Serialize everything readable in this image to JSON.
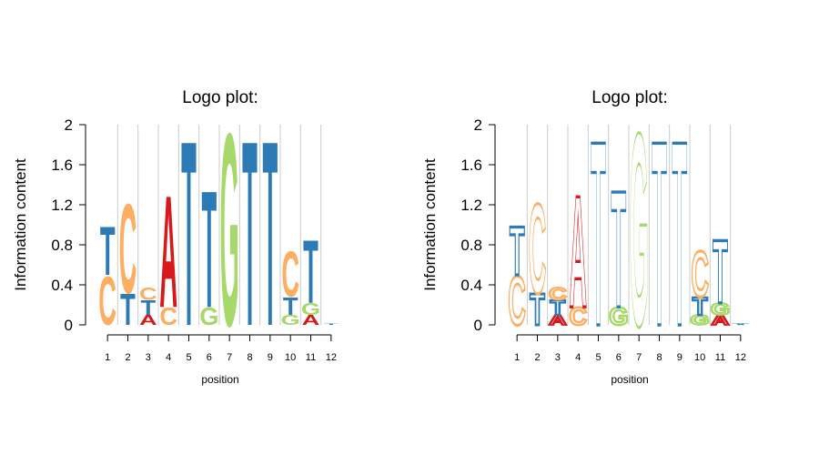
{
  "colors": {
    "A": "#d7191c",
    "C": "#fdae61",
    "G": "#a6d96a",
    "T": "#2c7bb6",
    "gridline": "#cccccc",
    "axis": "#000000"
  },
  "chart_data": [
    {
      "type": "sequence-logo",
      "style": "filled",
      "title": "Logo plot:",
      "xlabel": "position",
      "ylabel": "Information content",
      "ylim": [
        0,
        2
      ],
      "yticks": [
        "0",
        "0.4",
        "0.8",
        "1.2",
        "1.6",
        "2"
      ],
      "ytick_values": [
        0,
        0.4,
        0.8,
        1.2,
        1.6,
        2
      ],
      "xticks": [
        "1",
        "2",
        "3",
        "4",
        "5",
        "6",
        "7",
        "8",
        "9",
        "10",
        "11",
        "12"
      ],
      "grid": "vertical",
      "positions": [
        {
          "x": 1,
          "stack": [
            {
              "letter": "C",
              "height": 0.5
            },
            {
              "letter": "T",
              "height": 0.5
            }
          ]
        },
        {
          "x": 2,
          "stack": [
            {
              "letter": "T",
              "height": 0.32
            },
            {
              "letter": "C",
              "height": 0.92
            }
          ]
        },
        {
          "x": 3,
          "stack": [
            {
              "letter": "A",
              "height": 0.1
            },
            {
              "letter": "T",
              "height": 0.15
            },
            {
              "letter": "C",
              "height": 0.13
            }
          ]
        },
        {
          "x": 4,
          "stack": [
            {
              "letter": "C",
              "height": 0.18
            },
            {
              "letter": "A",
              "height": 1.15
            }
          ]
        },
        {
          "x": 5,
          "stack": [
            {
              "letter": "T",
              "height": 1.9
            }
          ]
        },
        {
          "x": 6,
          "stack": [
            {
              "letter": "G",
              "height": 0.18
            },
            {
              "letter": "T",
              "height": 1.2
            }
          ]
        },
        {
          "x": 7,
          "stack": [
            {
              "letter": "G",
              "height": 1.98
            }
          ]
        },
        {
          "x": 8,
          "stack": [
            {
              "letter": "T",
              "height": 1.9
            }
          ]
        },
        {
          "x": 9,
          "stack": [
            {
              "letter": "T",
              "height": 1.9
            }
          ]
        },
        {
          "x": 10,
          "stack": [
            {
              "letter": "G",
              "height": 0.1
            },
            {
              "letter": "T",
              "height": 0.18
            },
            {
              "letter": "C",
              "height": 0.47
            }
          ]
        },
        {
          "x": 11,
          "stack": [
            {
              "letter": "A",
              "height": 0.1
            },
            {
              "letter": "G",
              "height": 0.12
            },
            {
              "letter": "T",
              "height": 0.65
            }
          ]
        },
        {
          "x": 12,
          "stack": [
            {
              "letter": "T",
              "height": 0.01
            }
          ]
        }
      ]
    },
    {
      "type": "sequence-logo",
      "style": "outlined",
      "title": "Logo plot:",
      "xlabel": "position",
      "ylabel": "Information content",
      "ylim": [
        0,
        2
      ],
      "yticks": [
        "0",
        "0.4",
        "0.8",
        "1.2",
        "1.6",
        "2"
      ],
      "ytick_values": [
        0,
        0.4,
        0.8,
        1.2,
        1.6,
        2
      ],
      "xticks": [
        "1",
        "2",
        "3",
        "4",
        "5",
        "6",
        "7",
        "8",
        "9",
        "10",
        "11",
        "12"
      ],
      "grid": "vertical",
      "positions": [
        {
          "x": 1,
          "stack": [
            {
              "letter": "C",
              "height": 0.5
            },
            {
              "letter": "T",
              "height": 0.5
            }
          ]
        },
        {
          "x": 2,
          "stack": [
            {
              "letter": "T",
              "height": 0.32
            },
            {
              "letter": "C",
              "height": 0.92
            }
          ]
        },
        {
          "x": 3,
          "stack": [
            {
              "letter": "A",
              "height": 0.1
            },
            {
              "letter": "T",
              "height": 0.15
            },
            {
              "letter": "C",
              "height": 0.13
            }
          ]
        },
        {
          "x": 4,
          "stack": [
            {
              "letter": "C",
              "height": 0.18
            },
            {
              "letter": "A",
              "height": 1.15
            }
          ]
        },
        {
          "x": 5,
          "stack": [
            {
              "letter": "T",
              "height": 1.9
            }
          ]
        },
        {
          "x": 6,
          "stack": [
            {
              "letter": "G",
              "height": 0.18
            },
            {
              "letter": "T",
              "height": 1.2
            }
          ]
        },
        {
          "x": 7,
          "stack": [
            {
              "letter": "G",
              "height": 1.98
            }
          ]
        },
        {
          "x": 8,
          "stack": [
            {
              "letter": "T",
              "height": 1.9
            }
          ]
        },
        {
          "x": 9,
          "stack": [
            {
              "letter": "T",
              "height": 1.9
            }
          ]
        },
        {
          "x": 10,
          "stack": [
            {
              "letter": "G",
              "height": 0.1
            },
            {
              "letter": "T",
              "height": 0.18
            },
            {
              "letter": "C",
              "height": 0.47
            }
          ]
        },
        {
          "x": 11,
          "stack": [
            {
              "letter": "A",
              "height": 0.1
            },
            {
              "letter": "G",
              "height": 0.12
            },
            {
              "letter": "T",
              "height": 0.65
            }
          ]
        },
        {
          "x": 12,
          "stack": [
            {
              "letter": "T",
              "height": 0.01
            }
          ]
        }
      ]
    }
  ]
}
